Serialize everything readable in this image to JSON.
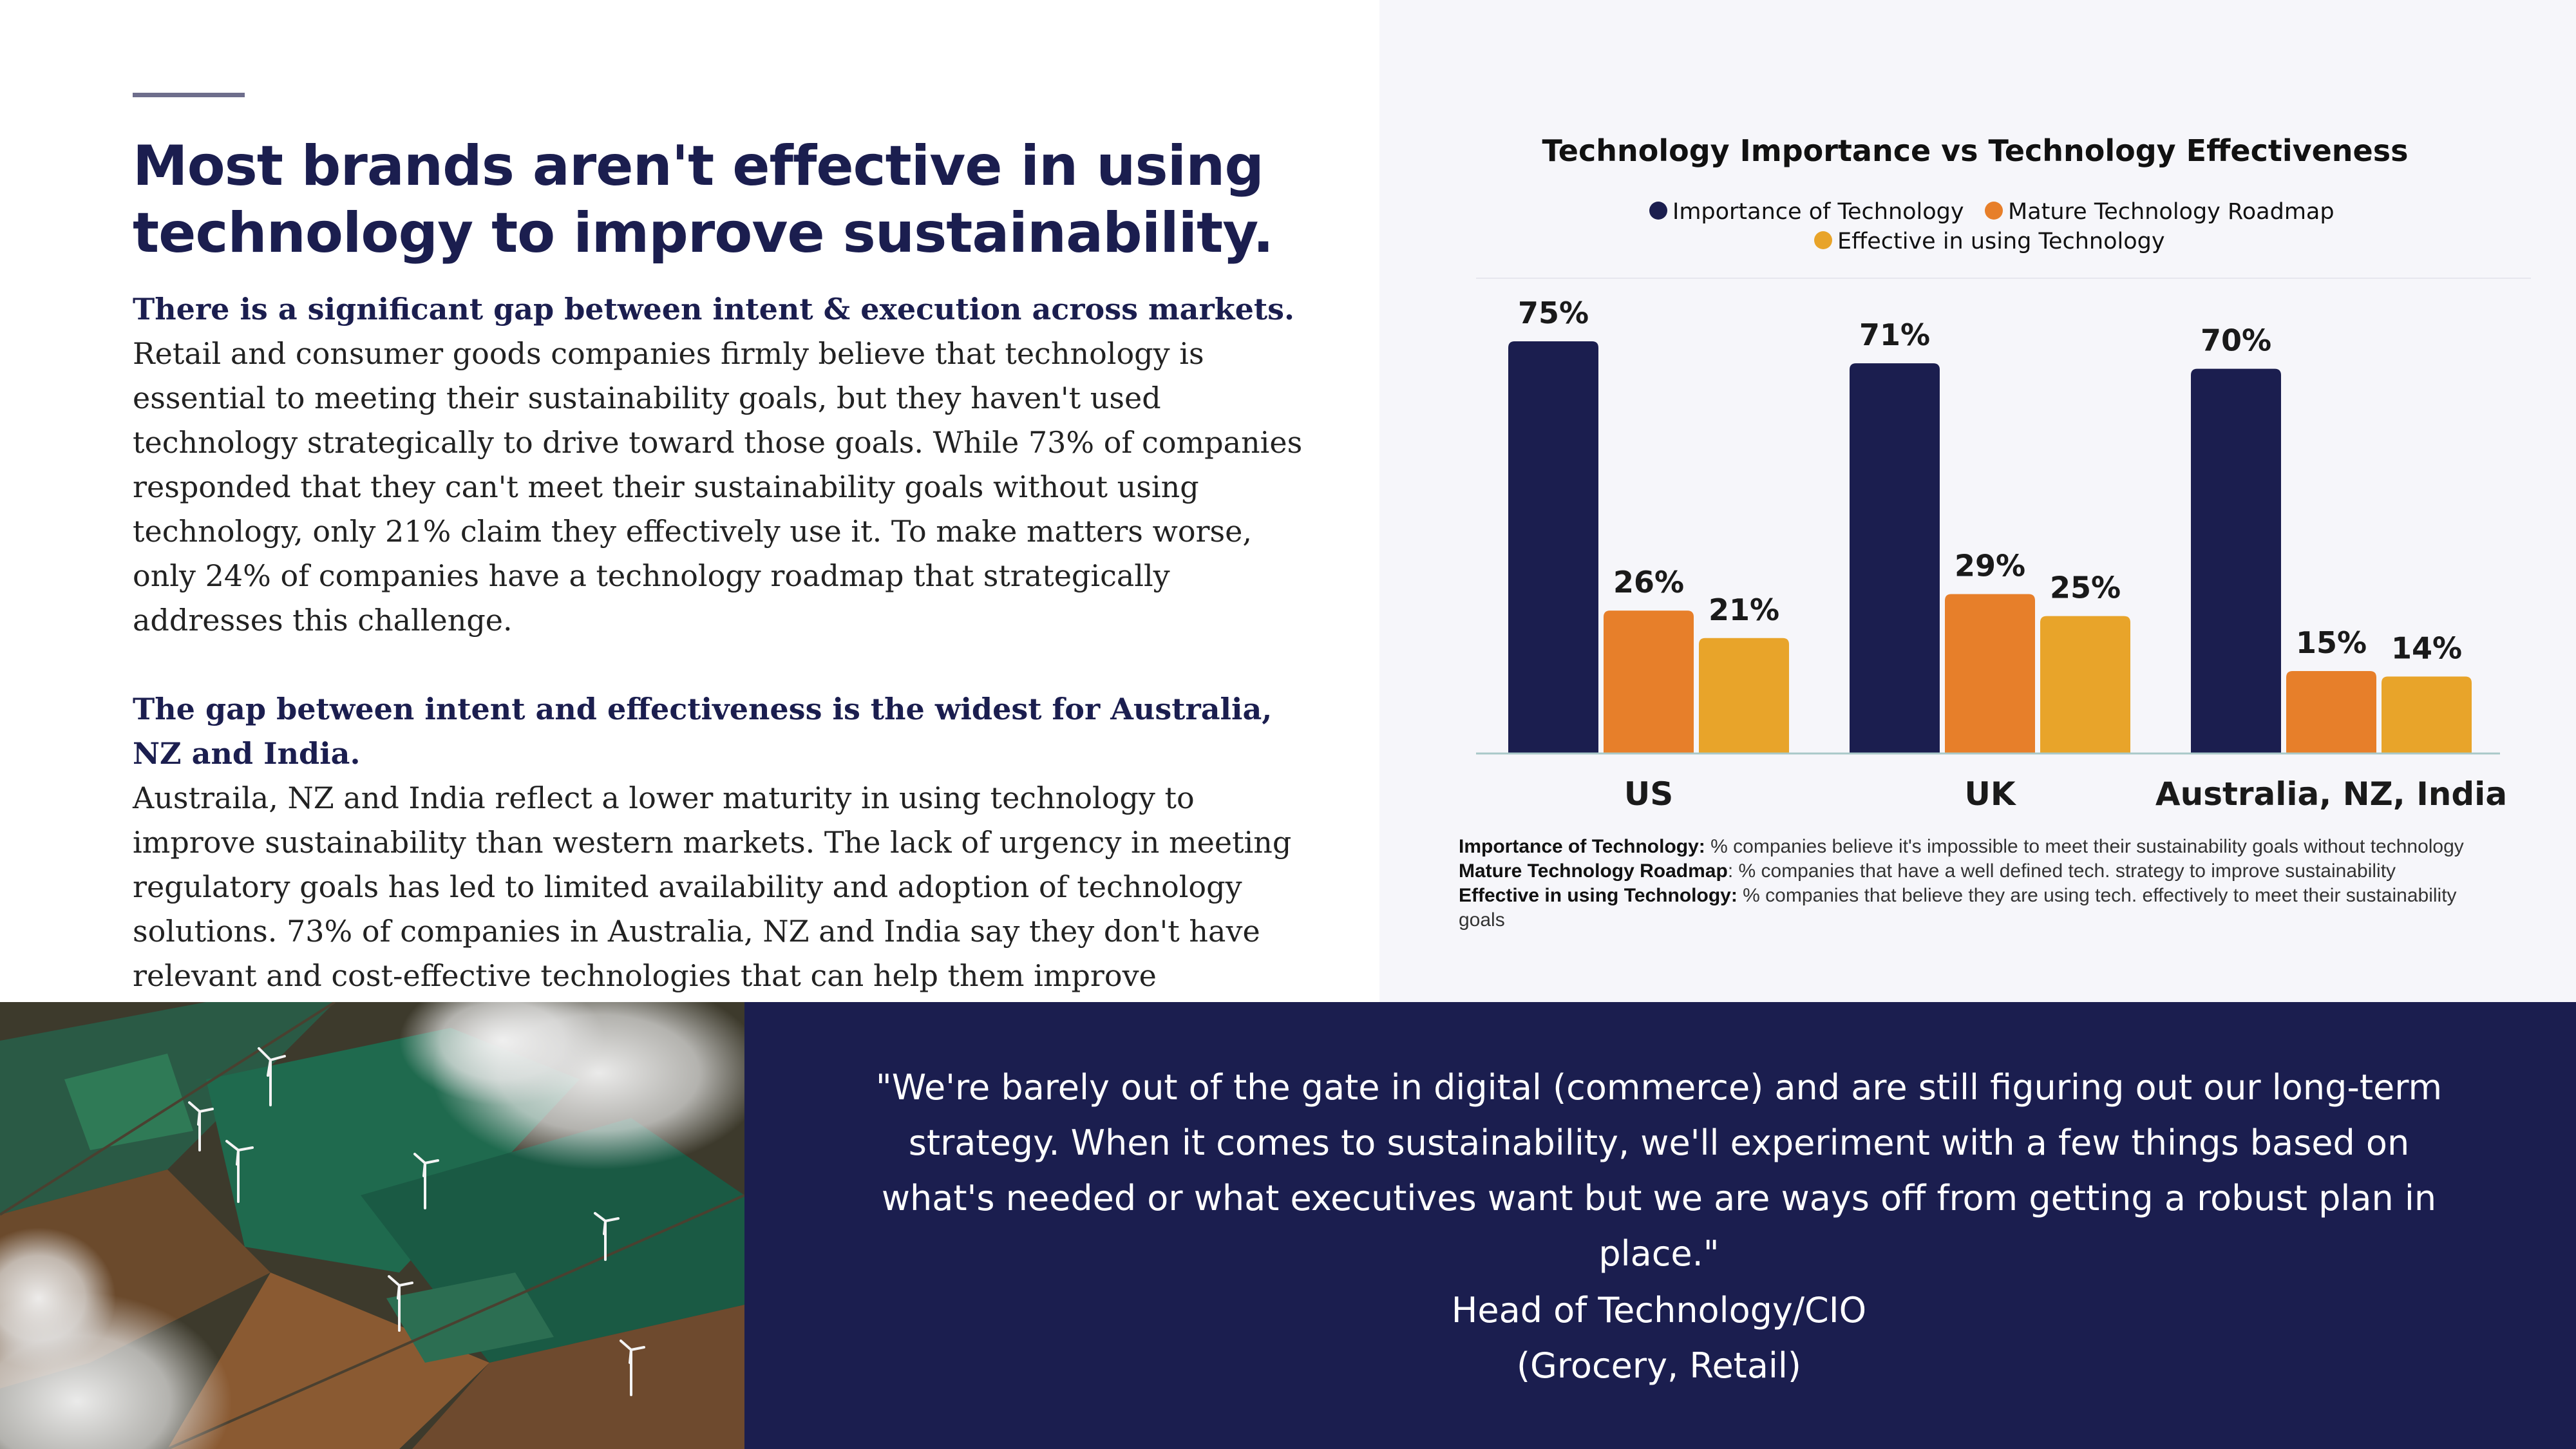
{
  "headline": "Most brands aren't effective in using technology to improve sustainability.",
  "body": {
    "section1_lead": "There is a significant gap between intent & execution across markets.",
    "section1_text": "Retail and consumer goods companies firmly believe that technology is essential to meeting their sustainability goals, but they haven't used technology strategically to drive toward those goals. While 73% of companies responded that they can't meet their sustainability goals without using technology, only 21% claim they effectively use it. To make matters worse, only 24% of companies have a technology roadmap that strategically addresses this challenge.",
    "section2_lead": "The gap between intent and effectiveness is the widest for Australia, NZ and India.",
    "section2_text": "Austraila, NZ and India reflect a lower maturity in using technology to improve sustainability than western markets. The lack of urgency in meeting regulatory goals has led to limited availability and adoption of technology solutions. 73% of companies in Australia, NZ and India say they don't have relevant and cost-effective technologies that can help them improve sustainability."
  },
  "chart_data": {
    "type": "bar",
    "title": "Technology Importance vs Technology Effectiveness",
    "categories": [
      "US",
      "UK",
      "Australia, NZ, India"
    ],
    "series": [
      {
        "name": "Importance of Technology",
        "values": [
          75,
          71,
          70
        ],
        "color": "#1b1e4f"
      },
      {
        "name": "Mature Technology Roadmap",
        "values": [
          26,
          29,
          15
        ],
        "color": "#e77f2a"
      },
      {
        "name": "Effective in using Technology",
        "values": [
          21,
          25,
          14
        ],
        "color": "#e8a42a"
      }
    ],
    "value_suffix": "%",
    "ylim": [
      0,
      80
    ],
    "grid": false,
    "legend_position": "top-center"
  },
  "footnotes": [
    {
      "term": "Importance of Technology:",
      "text": " % companies believe it's impossible to meet their sustainability goals without technology"
    },
    {
      "term": "Mature Technology Roadmap",
      "text": ": % companies that have a well defined tech. strategy to improve sustainability"
    },
    {
      "term": "Effective in using Technology:",
      "text": " % companies that believe they are using tech. effectively to meet their sustainability goals"
    }
  ],
  "quote": {
    "text": "\"We're barely out of the gate in digital (commerce) and are still figuring out our long-term strategy. When it comes to sustainability, we'll experiment with a few things based on what's needed or what executives want but we are ways off from getting a robust plan in place.\"",
    "author_line1": "Head of Technology/CIO",
    "author_line2": "(Grocery, Retail)"
  },
  "colors": {
    "navy": "#1b1e4f",
    "orange": "#e77f2a",
    "gold": "#e8a42a",
    "panel_bg": "#f6f6fa"
  }
}
